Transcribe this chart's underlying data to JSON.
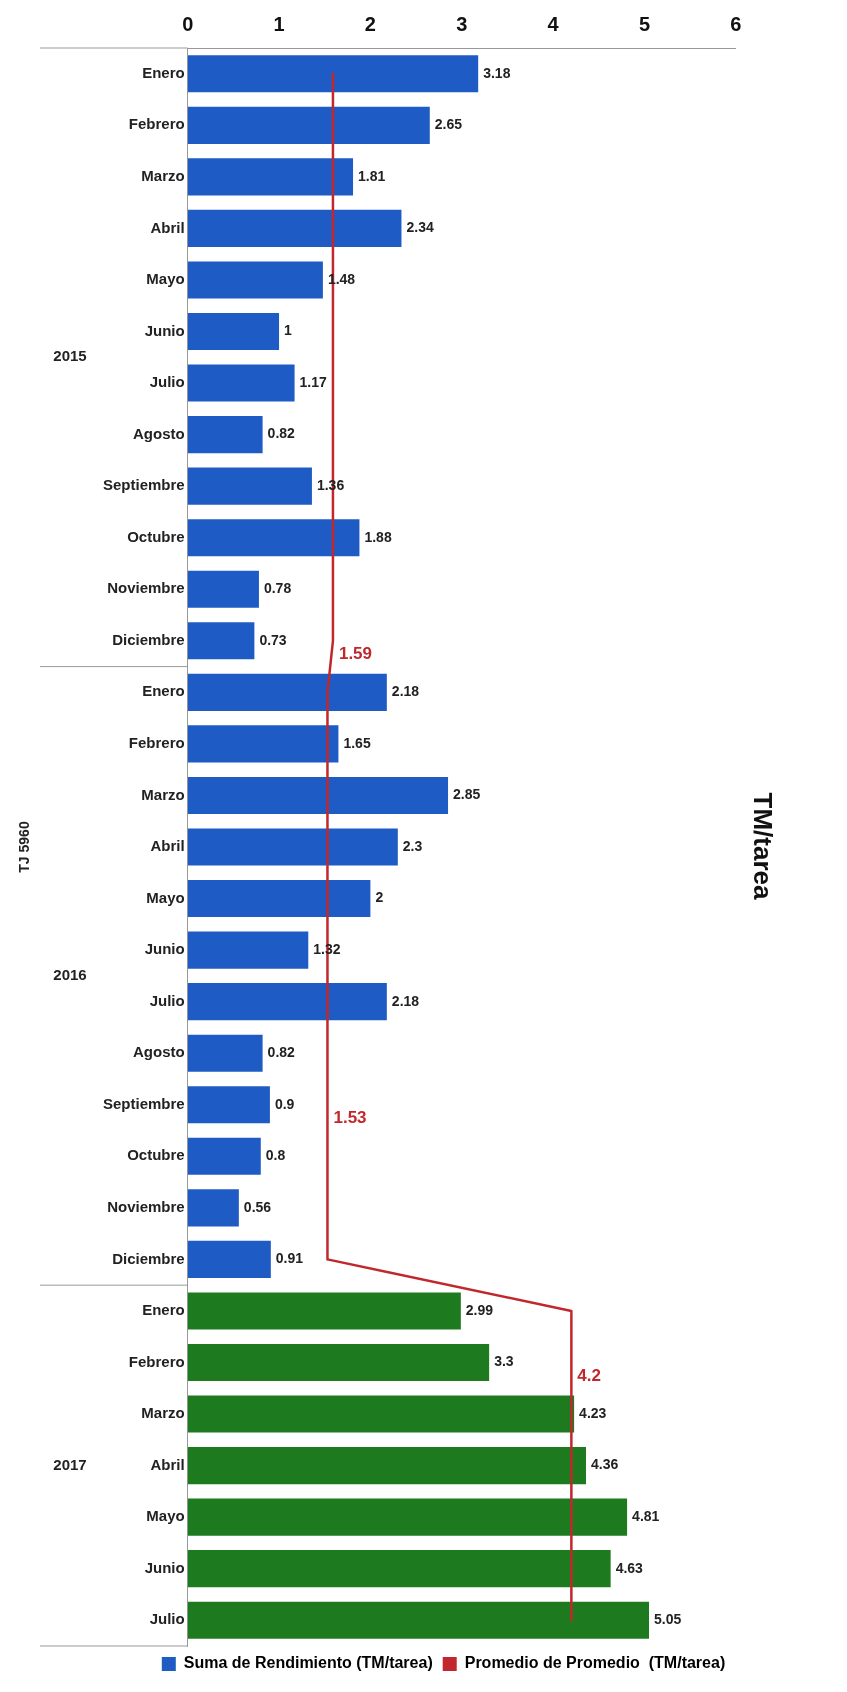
{
  "chart_data": {
    "type": "bar",
    "orientation": "horizontal",
    "title": "TM/tarea",
    "categories": [
      "Enero",
      "Febrero",
      "Marzo",
      "Abril",
      "Mayo",
      "Junio",
      "Julio",
      "Agosto",
      "Septiembre",
      "Octubre",
      "Noviembre",
      "Diciembre",
      "Enero",
      "Febrero",
      "Marzo",
      "Abril",
      "Mayo",
      "Junio",
      "Julio",
      "Agosto",
      "Septiembre",
      "Octubre",
      "Noviembre",
      "Diciembre",
      "Enero",
      "Febrero",
      "Marzo",
      "Abril",
      "Mayo",
      "Junio",
      "Julio"
    ],
    "series": [
      {
        "name": "Suma de Rendimiento (TM/tarea)",
        "color": "#1f5bc4",
        "colors": [
          "#1f5bc4",
          "#1f5bc4",
          "#1f5bc4",
          "#1f5bc4",
          "#1f5bc4",
          "#1f5bc4",
          "#1f5bc4",
          "#1f5bc4",
          "#1f5bc4",
          "#1f5bc4",
          "#1f5bc4",
          "#1f5bc4",
          "#1f5bc4",
          "#1f5bc4",
          "#1f5bc4",
          "#1f5bc4",
          "#1f5bc4",
          "#1f5bc4",
          "#1f5bc4",
          "#1f5bc4",
          "#1f5bc4",
          "#1f5bc4",
          "#1f5bc4",
          "#1f5bc4",
          "#1e7a1e",
          "#1e7a1e",
          "#1e7a1e",
          "#1e7a1e",
          "#1e7a1e",
          "#1e7a1e",
          "#1e7a1e"
        ],
        "values": [
          3.18,
          2.65,
          1.81,
          2.34,
          1.48,
          1,
          1.17,
          0.82,
          1.36,
          1.88,
          0.78,
          0.73,
          2.18,
          1.65,
          2.85,
          2.3,
          2,
          1.32,
          2.18,
          0.82,
          0.9,
          0.8,
          0.56,
          0.91,
          2.99,
          3.3,
          4.23,
          4.36,
          4.81,
          4.63,
          5.05
        ]
      },
      {
        "name": "Promedio de Promedio  (TM/tarea)",
        "type": "line",
        "color": "#c0282d",
        "values": [
          1.59,
          1.59,
          1.59,
          1.59,
          1.59,
          1.59,
          1.59,
          1.59,
          1.59,
          1.59,
          1.59,
          1.59,
          1.53,
          1.53,
          1.53,
          1.53,
          1.53,
          1.53,
          1.53,
          1.53,
          1.53,
          1.53,
          1.53,
          1.53,
          4.2,
          4.2,
          4.2,
          4.2,
          4.2,
          4.2,
          4.2
        ],
        "value_labels": [
          null,
          null,
          null,
          null,
          null,
          null,
          null,
          null,
          null,
          null,
          null,
          "1.59",
          null,
          null,
          null,
          null,
          null,
          null,
          null,
          null,
          "1.53",
          null,
          null,
          null,
          null,
          "4.2",
          null,
          null,
          null,
          null,
          null
        ]
      }
    ],
    "xlim": [
      0,
      6
    ],
    "xticks": [
      0,
      1,
      2,
      3,
      4,
      5,
      6
    ],
    "data_labels": true,
    "legend": "bottom",
    "marker": "none",
    "annotations": [
      "2015",
      "2016",
      "2017",
      "TJ 5960"
    ]
  }
}
